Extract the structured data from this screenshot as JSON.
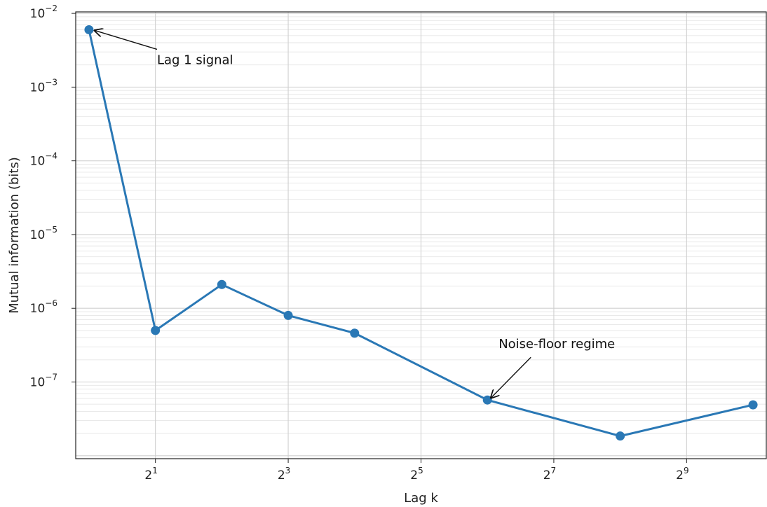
{
  "chart_data": {
    "type": "line",
    "xlabel": "Lag k",
    "ylabel": "Mutual information (bits)",
    "x_scale": "log2",
    "y_scale": "log10",
    "grid": true,
    "x": [
      1,
      2,
      4,
      8,
      16,
      64,
      256,
      1024
    ],
    "series": [
      {
        "color": "#2a78b5",
        "values": [
          0.006,
          5e-07,
          2.1e-06,
          8e-07,
          4.6e-07,
          5.7e-08,
          1.85e-08,
          4.9e-08
        ]
      }
    ],
    "x_ticks": [
      {
        "base": "2",
        "exp": "1"
      },
      {
        "base": "2",
        "exp": "3"
      },
      {
        "base": "2",
        "exp": "5"
      },
      {
        "base": "2",
        "exp": "7"
      },
      {
        "base": "2",
        "exp": "9"
      }
    ],
    "y_ticks": [
      {
        "base": "10",
        "exp": "−2"
      },
      {
        "base": "10",
        "exp": "−3"
      },
      {
        "base": "10",
        "exp": "−4"
      },
      {
        "base": "10",
        "exp": "−5"
      },
      {
        "base": "10",
        "exp": "−6"
      },
      {
        "base": "10",
        "exp": "−7"
      }
    ],
    "annotations": [
      {
        "text": "Lag 1 signal",
        "x": 1,
        "y": 0.006
      },
      {
        "text": "Noise-floor regime",
        "x": 64,
        "y": 5.7e-08
      }
    ]
  }
}
